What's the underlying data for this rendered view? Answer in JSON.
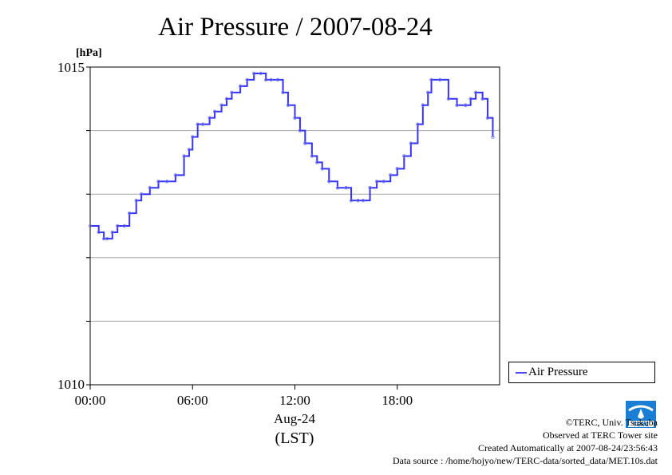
{
  "page": {
    "title": "Air Pressure / 2007-08-24"
  },
  "chart_data": {
    "type": "line",
    "title": "Air Pressure / 2007-08-24",
    "ylabel": "[hPa]",
    "xlabel": "Aug-24",
    "xlabel2": "(LST)",
    "ylim": [
      1010,
      1015
    ],
    "xlim": [
      0,
      24
    ],
    "ytick_labels": [
      "1010",
      "1015"
    ],
    "yticks_minor": [
      1010,
      1011,
      1012,
      1013,
      1014,
      1015
    ],
    "xticks": [
      0,
      6,
      12,
      18
    ],
    "xtick_labels": [
      "00:00",
      "06:00",
      "12:00",
      "18:00"
    ],
    "grid": "horizontal",
    "legend_position": "right",
    "series": [
      {
        "name": "Air Pressure",
        "color": "#3333ff",
        "x": [
          0.0,
          0.5,
          0.8,
          1.0,
          1.3,
          1.6,
          2.0,
          2.3,
          2.7,
          3.0,
          3.5,
          4.0,
          4.5,
          5.0,
          5.5,
          5.8,
          6.0,
          6.3,
          6.6,
          7.0,
          7.3,
          7.7,
          8.0,
          8.3,
          8.8,
          9.2,
          9.6,
          10.0,
          10.3,
          10.6,
          11.0,
          11.3,
          11.6,
          12.0,
          12.3,
          12.6,
          13.0,
          13.3,
          13.6,
          14.0,
          14.5,
          15.0,
          15.3,
          15.7,
          16.0,
          16.4,
          16.8,
          17.2,
          17.6,
          18.0,
          18.4,
          18.8,
          19.2,
          19.5,
          19.8,
          20.0,
          20.5,
          21.0,
          21.5,
          22.0,
          22.3,
          22.6,
          23.0,
          23.3,
          23.6
        ],
        "y": [
          1012.5,
          1012.4,
          1012.3,
          1012.3,
          1012.4,
          1012.5,
          1012.5,
          1012.7,
          1012.9,
          1013.0,
          1013.1,
          1013.2,
          1013.2,
          1013.3,
          1013.6,
          1013.7,
          1013.9,
          1014.1,
          1014.1,
          1014.2,
          1014.3,
          1014.4,
          1014.5,
          1014.6,
          1014.7,
          1014.8,
          1014.9,
          1014.9,
          1014.8,
          1014.8,
          1014.8,
          1014.6,
          1014.4,
          1014.2,
          1014.0,
          1013.8,
          1013.6,
          1013.5,
          1013.4,
          1013.2,
          1013.1,
          1013.1,
          1012.9,
          1012.9,
          1012.9,
          1013.1,
          1013.2,
          1013.2,
          1013.3,
          1013.4,
          1013.6,
          1013.8,
          1014.1,
          1014.4,
          1014.6,
          1014.8,
          1014.8,
          1014.5,
          1014.4,
          1014.4,
          1014.5,
          1014.6,
          1014.5,
          1014.2,
          1013.9
        ]
      }
    ]
  },
  "legend": {
    "label": "Air Pressure"
  },
  "footer": {
    "copyright": "©TERC, Univ. Tsukuba",
    "observed": "Observed at TERC Tower site",
    "created": "Created Automatically at 2007-08-24/23:56:43",
    "source": "Data source : /home/hojyo/new/TERC-data/sorted_data/MET.10s.dat"
  },
  "logo": {
    "text": "TERC",
    "color": "#1a7fd4"
  }
}
